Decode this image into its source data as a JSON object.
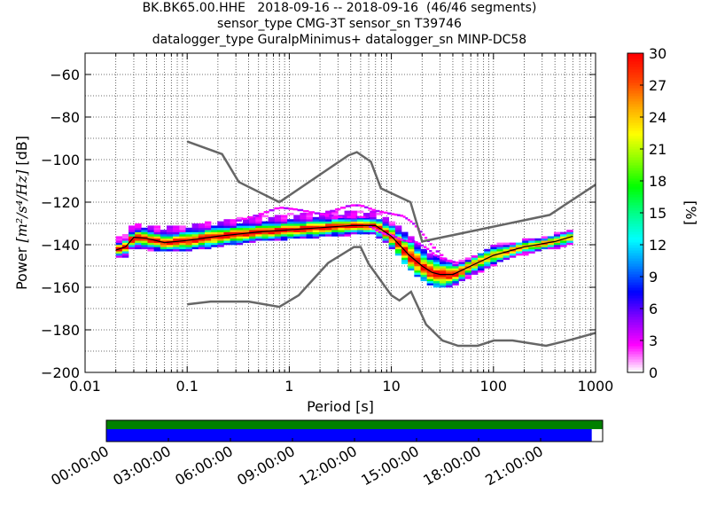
{
  "title_lines": [
    "BK.BK65.00.HHE   2018-09-16 -- 2018-09-16  (46/46 segments)",
    "sensor_type CMG-3T sensor_sn T39746",
    "datalogger_type GuralpMinimus+ datalogger_sn MINP-DC58"
  ],
  "chart_data": {
    "type": "heatmap",
    "xlabel": "Period [s]",
    "ylabel_prefix": "Power ",
    "ylabel_unit": "[m²/s⁴/Hz]",
    "ylabel_suffix": " [dB]",
    "xscale": "log",
    "xlim": [
      0.01,
      1000
    ],
    "ylim": [
      -200,
      -50
    ],
    "x_ticks": [
      0.01,
      0.1,
      1,
      10,
      100,
      1000
    ],
    "x_tick_labels": [
      "0.01",
      "0.1",
      "1",
      "10",
      "100",
      "1000"
    ],
    "y_ticks": [
      -200,
      -180,
      -160,
      -140,
      -120,
      -100,
      -80,
      -60
    ],
    "y_tick_labels": [
      "−200",
      "−180",
      "−160",
      "−140",
      "−120",
      "−100",
      "−80",
      "−60"
    ],
    "grid": "dotted",
    "noise_models": [
      {
        "name": "NHNM",
        "x": [
          0.1,
          0.22,
          0.32,
          0.8,
          3.8,
          4.6,
          6.3,
          7.9,
          15.4,
          20,
          354.8,
          10000
        ],
        "y": [
          -91.5,
          -97.4,
          -110.5,
          -120,
          -98,
          -96.5,
          -101,
          -113.5,
          -120,
          -138.5,
          -126,
          -80.1
        ]
      },
      {
        "name": "NLNM",
        "x": [
          0.1,
          0.17,
          0.4,
          0.8,
          1.24,
          2.4,
          4.3,
          5.0,
          6.0,
          10.0,
          12.0,
          15.6,
          21.9,
          31.6,
          45,
          70,
          101,
          154,
          328,
          600,
          10000
        ],
        "y": [
          -168,
          -166.7,
          -166.7,
          -169.2,
          -163.7,
          -148.6,
          -141.1,
          -141.1,
          -149,
          -163.8,
          -166.2,
          -162.1,
          -177.5,
          -185,
          -187.5,
          -187.5,
          -185,
          -185,
          -187.5,
          -184.4,
          -168
        ]
      }
    ],
    "percentiles": [
      {
        "name": "p_high",
        "x": [
          0.02,
          0.025,
          0.03,
          0.04,
          0.06,
          0.1,
          0.2,
          0.5,
          1,
          2,
          4,
          5,
          7,
          10,
          15,
          20,
          25,
          30,
          40,
          60,
          100,
          200,
          400,
          600
        ],
        "y": [
          -141,
          -139,
          -134,
          -135,
          -136,
          -135,
          -133,
          -131,
          -130,
          -129,
          -128.5,
          -128.5,
          -128.5,
          -133,
          -140,
          -146,
          -149,
          -150,
          -151,
          -147,
          -142,
          -139,
          -136,
          -134
        ]
      },
      {
        "name": "p_mean",
        "x": [
          0.02,
          0.025,
          0.03,
          0.04,
          0.06,
          0.1,
          0.2,
          0.5,
          1,
          2,
          4,
          5,
          7,
          10,
          15,
          20,
          25,
          30,
          40,
          60,
          100,
          200,
          400,
          600
        ],
        "y": [
          -142.5,
          -141,
          -136.5,
          -137,
          -139,
          -138,
          -136,
          -134,
          -133,
          -132,
          -131,
          -131,
          -131,
          -136,
          -145,
          -150,
          -153,
          -154,
          -154,
          -150,
          -145,
          -141,
          -138.5,
          -136
        ]
      },
      {
        "name": "p_low",
        "x": [
          0.02,
          0.025,
          0.03,
          0.04,
          0.06,
          0.1,
          0.2,
          0.5,
          1,
          2,
          4,
          5,
          7,
          10,
          15,
          20,
          25,
          30,
          40,
          60,
          100,
          200,
          400,
          600
        ],
        "y": [
          -143.5,
          -142.5,
          -138,
          -139,
          -140,
          -139.5,
          -137.5,
          -135,
          -134,
          -133,
          -132,
          -132,
          -132,
          -138,
          -148,
          -153,
          -156,
          -157,
          -156,
          -151.5,
          -146.5,
          -142,
          -139,
          -137
        ]
      }
    ],
    "outlier_tracks": [
      {
        "name": "o1",
        "x": [
          0.3,
          0.5,
          0.8,
          1.2,
          2,
          3,
          4.5,
          6
        ],
        "y": [
          -129.5,
          -126.5,
          -123,
          -124,
          -126,
          -127.5,
          -127.5,
          -127.5
        ]
      },
      {
        "name": "o2",
        "x": [
          2.5,
          4,
          5,
          7,
          10,
          13,
          16,
          20,
          25,
          35
        ],
        "y": [
          -125,
          -122,
          -122,
          -124.5,
          -126,
          -127,
          -130,
          -135,
          -141,
          -148
        ]
      },
      {
        "name": "o3",
        "x": [
          6,
          8,
          10,
          13,
          17,
          22,
          28,
          35,
          45
        ],
        "y": [
          -131.5,
          -135,
          -136,
          -138.5,
          -139,
          -142,
          -146,
          -148,
          -149
        ]
      }
    ],
    "colorbar": {
      "label": "[%]",
      "min": 0,
      "max": 30,
      "ticks": [
        0,
        3,
        6,
        9,
        12,
        15,
        18,
        21,
        24,
        27,
        30
      ]
    },
    "colormap_stops": [
      "#ffffff",
      "#ff00ff",
      "#8800ff",
      "#0000ff",
      "#0088ff",
      "#00ffff",
      "#00ff88",
      "#00ff00",
      "#88ff00",
      "#ffff00",
      "#ffaa00",
      "#ff4400",
      "#ff0000"
    ]
  },
  "timeline": {
    "tick_labels": [
      "00:00:00",
      "03:00:00",
      "06:00:00",
      "09:00:00",
      "12:00:00",
      "15:00:00",
      "18:00:00",
      "21:00:00"
    ],
    "data_coverage": 0.978,
    "gap_coverage": 1.0,
    "coverage_color": "#0000ff",
    "gap_color": "#008000"
  }
}
